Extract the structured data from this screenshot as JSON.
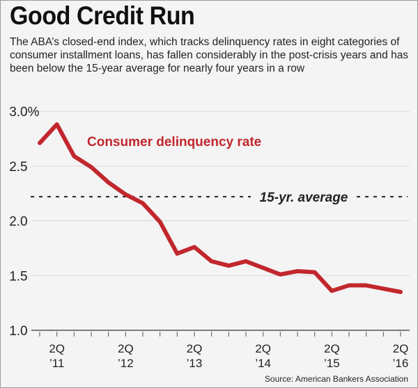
{
  "title": "Good Credit Run",
  "subtitle": "The ABA’s closed-end index, which tracks delinquency rates in eight categories of consumer installment loans, has fallen considerably in the post-crisis years and has been below the 15-year average for nearly four years in a row",
  "source": "Source: American Bankers Association",
  "colors": {
    "line": "#c1272d",
    "background": "#f4f4f5",
    "grid": "#d8d8da"
  },
  "chart_data": {
    "type": "line",
    "x": [
      "1Q '11",
      "2Q '11",
      "3Q '11",
      "4Q '11",
      "1Q '12",
      "2Q '12",
      "3Q '12",
      "4Q '12",
      "1Q '13",
      "2Q '13",
      "3Q '13",
      "4Q '13",
      "1Q '14",
      "2Q '14",
      "3Q '14",
      "4Q '14",
      "1Q '15",
      "2Q '15",
      "3Q '15",
      "4Q '15",
      "1Q '16",
      "2Q '16"
    ],
    "series": [
      {
        "name": "Consumer delinquency rate",
        "values": [
          2.71,
          2.88,
          2.59,
          2.49,
          2.35,
          2.24,
          2.16,
          1.99,
          1.7,
          1.76,
          1.63,
          1.59,
          1.63,
          1.57,
          1.51,
          1.54,
          1.53,
          1.36,
          1.41,
          1.41,
          1.38,
          1.35
        ]
      }
    ],
    "reference_line": {
      "label": "15-yr. average",
      "value": 2.22,
      "style": "dashed"
    },
    "ylim": [
      1.0,
      3.0
    ],
    "yticks": [
      {
        "v": 3.0,
        "label": "3.0%"
      },
      {
        "v": 2.5,
        "label": "2.5"
      },
      {
        "v": 2.0,
        "label": "2.0"
      },
      {
        "v": 1.5,
        "label": "1.5"
      },
      {
        "v": 1.0,
        "label": "1.0"
      }
    ],
    "xtick_labels": [
      {
        "i": 1,
        "q": "2Q",
        "y": "’11"
      },
      {
        "i": 5,
        "q": "2Q",
        "y": "’12"
      },
      {
        "i": 9,
        "q": "2Q",
        "y": "’13"
      },
      {
        "i": 13,
        "q": "2Q",
        "y": "’14"
      },
      {
        "i": 17,
        "q": "2Q",
        "y": "’15"
      },
      {
        "i": 21,
        "q": "2Q",
        "y": "’16"
      }
    ],
    "grid": true
  }
}
